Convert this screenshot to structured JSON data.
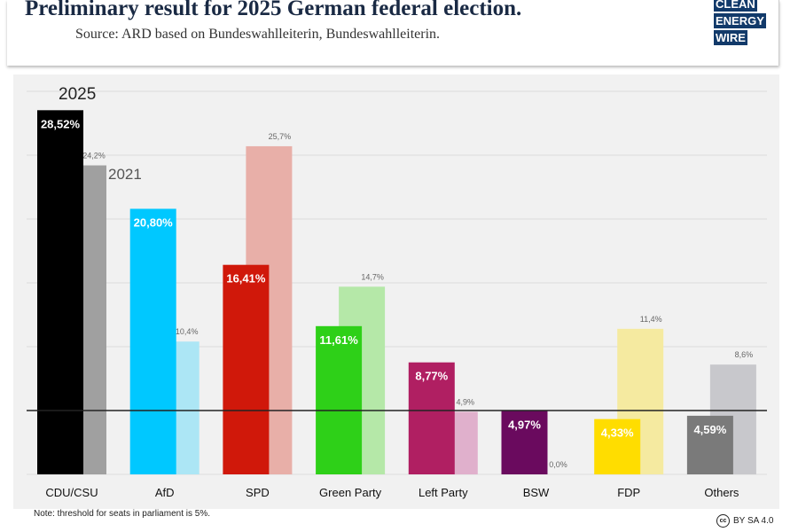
{
  "header": {
    "title": "Preliminary result for 2025 German federal election.",
    "subtitle": "Source: ARD based on Bundeswahlleiterin, Bundeswahlleiterin.",
    "logo": [
      "CLEAN",
      "ENERGY",
      "WIRE"
    ]
  },
  "footer": {
    "note": "Note: threshold for seats in parliament is 5%.",
    "license": "BY SA 4.0"
  },
  "chart_data": {
    "type": "bar",
    "categories": [
      "CDU/CSU",
      "AfD",
      "SPD",
      "Green Party",
      "Left Party",
      "BSW",
      "FDP",
      "Others"
    ],
    "series": [
      {
        "name": "2025",
        "values": [
          28.52,
          20.8,
          16.41,
          11.61,
          8.77,
          4.97,
          4.33,
          4.59
        ],
        "labels": [
          "28,52%",
          "20,80%",
          "16,41%",
          "11,61%",
          "8,77%",
          "4,97%",
          "4,33%",
          "4,59%"
        ],
        "colors": [
          "#000000",
          "#00c8ff",
          "#d0180a",
          "#2ed018",
          "#b01f62",
          "#6a0a5e",
          "#ffdd00",
          "#7a7a7a"
        ]
      },
      {
        "name": "2021",
        "values": [
          24.2,
          10.4,
          25.7,
          14.7,
          4.9,
          0.0,
          11.4,
          8.6
        ],
        "labels": [
          "24,2%",
          "10,4%",
          "25,7%",
          "14,7%",
          "4,9%",
          "0,0%",
          "11,4%",
          "8,6%"
        ],
        "colors": [
          "#a0a0a0",
          "#ace6f5",
          "#e8afa8",
          "#b5e8a8",
          "#e0b0cc",
          "#d8c8d8",
          "#f5eaa0",
          "#c8c8cc"
        ]
      }
    ],
    "threshold": 5,
    "ylim": [
      0,
      30
    ],
    "grid": true
  }
}
